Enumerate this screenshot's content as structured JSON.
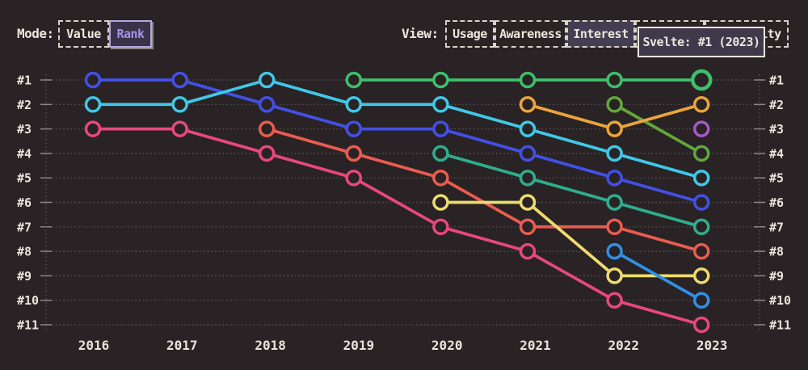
{
  "header": {
    "mode": {
      "label": "Mode:",
      "options": [
        {
          "label": "Value",
          "selected": false
        },
        {
          "label": "Rank",
          "selected": true
        }
      ]
    },
    "view": {
      "label": "View:",
      "options": [
        {
          "label": "Usage",
          "selected": false
        },
        {
          "label": "Awareness",
          "selected": false
        },
        {
          "label": "Interest",
          "selected": true
        },
        {
          "label": "Retention",
          "selected": false
        },
        {
          "label": "Positivity",
          "selected": false
        }
      ]
    }
  },
  "tooltip": {
    "text": "Svelte: #1 (2023)"
  },
  "chart_data": {
    "type": "line",
    "subtype": "bump-rank",
    "background": "#292325",
    "grid": "dotted",
    "x": [
      2016,
      2017,
      2018,
      2019,
      2020,
      2021,
      2022,
      2023
    ],
    "rank_axis_labels": [
      "#1",
      "#2",
      "#3",
      "#4",
      "#5",
      "#6",
      "#7",
      "#8",
      "#9",
      "#10",
      "#11"
    ],
    "y_axis_note": "rank 1 at top, rank 11 at bottom, shown on both sides",
    "series": [
      {
        "name": "pink",
        "color": "#e8487c",
        "ranks": [
          3,
          3,
          4,
          5,
          7,
          8,
          10,
          11
        ]
      },
      {
        "name": "blue",
        "color": "#4350e6",
        "ranks": [
          1,
          1,
          2,
          3,
          3,
          4,
          5,
          6
        ]
      },
      {
        "name": "cyan",
        "color": "#3fc8e8",
        "ranks": [
          2,
          2,
          1,
          2,
          2,
          3,
          4,
          5
        ]
      },
      {
        "name": "salmon",
        "color": "#ea5c50",
        "ranks": [
          null,
          null,
          3,
          4,
          5,
          7,
          7,
          8
        ]
      },
      {
        "name": "teal",
        "color": "#2fae8e",
        "ranks": [
          null,
          null,
          null,
          null,
          4,
          5,
          6,
          7
        ]
      },
      {
        "name": "yellow",
        "color": "#eedb6d",
        "ranks": [
          null,
          null,
          null,
          null,
          6,
          6,
          9,
          9
        ]
      },
      {
        "name": "sky",
        "color": "#2f90e8",
        "ranks": [
          null,
          null,
          null,
          null,
          null,
          null,
          8,
          10
        ]
      },
      {
        "name": "lime",
        "color": "#63a63c",
        "ranks": [
          null,
          null,
          null,
          null,
          null,
          null,
          2,
          4
        ]
      },
      {
        "name": "orange",
        "color": "#eca43b",
        "ranks": [
          null,
          null,
          null,
          null,
          null,
          2,
          3,
          2
        ]
      },
      {
        "name": "svelte",
        "color": "#3fbf6c",
        "ranks": [
          null,
          null,
          null,
          1,
          1,
          1,
          1,
          1
        ],
        "highlight_year": 2023
      },
      {
        "name": "purple",
        "color": "#a55ac5",
        "ranks": [
          null,
          null,
          null,
          null,
          null,
          null,
          null,
          3
        ]
      }
    ]
  }
}
